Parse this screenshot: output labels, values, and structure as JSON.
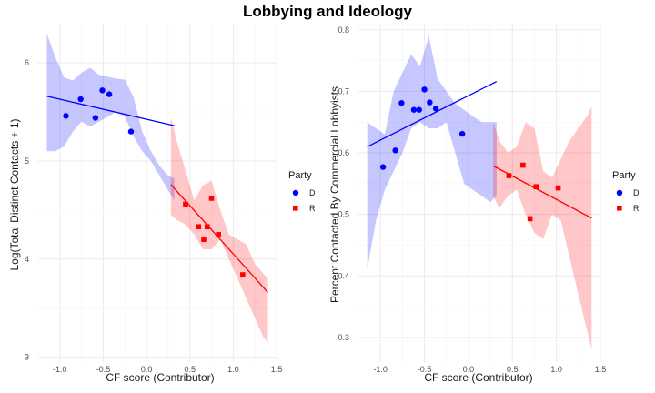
{
  "figure": {
    "title": "Lobbying and Ideology"
  },
  "legend_title": "Party",
  "party_colors": {
    "D": "#0000ff",
    "R": "#ff0000"
  },
  "chart_data": [
    {
      "type": "scatter",
      "xlabel": "CF score (Contributor)",
      "ylabel": "Log(Total Distinct Contacts + 1)",
      "xlim": [
        -1.25,
        1.5
      ],
      "ylim": [
        2.95,
        6.4
      ],
      "xticks": [
        -1.0,
        -0.5,
        0.0,
        0.5,
        1.0,
        1.5
      ],
      "xtick_labels": [
        "-1.0",
        "-0.5",
        "0.0",
        "0.5",
        "1.0",
        "1.5"
      ],
      "yticks": [
        3,
        4,
        5,
        6
      ],
      "ytick_labels": [
        "3",
        "4",
        "5",
        "6"
      ],
      "grid": true,
      "legend": {
        "title": "Party",
        "placement": "right",
        "entries": [
          "D",
          "R"
        ]
      },
      "series": [
        {
          "name": "D",
          "marker": "circle",
          "x": [
            -0.93,
            -0.76,
            -0.59,
            -0.51,
            -0.43,
            -0.18
          ],
          "y": [
            5.46,
            5.63,
            5.44,
            5.72,
            5.68,
            5.3
          ],
          "fit": {
            "x": [
              -1.15,
              0.32
            ],
            "y": [
              5.66,
              5.36
            ]
          },
          "band": {
            "x": [
              -1.15,
              -1.05,
              -0.95,
              -0.85,
              -0.75,
              -0.65,
              -0.55,
              -0.45,
              -0.35,
              -0.25,
              -0.15,
              -0.05,
              0.05,
              0.15,
              0.25,
              0.32
            ],
            "upper": [
              6.3,
              6.05,
              5.85,
              5.82,
              5.9,
              5.95,
              5.88,
              5.86,
              5.84,
              5.83,
              5.65,
              5.3,
              5.1,
              4.95,
              4.85,
              4.82
            ],
            "lower": [
              5.1,
              5.1,
              5.15,
              5.3,
              5.4,
              5.35,
              5.4,
              5.45,
              5.5,
              5.45,
              5.25,
              5.1,
              5.0,
              4.85,
              4.7,
              4.6
            ]
          }
        },
        {
          "name": "R",
          "marker": "square",
          "x": [
            0.45,
            0.6,
            0.66,
            0.7,
            0.75,
            0.83,
            1.11
          ],
          "y": [
            4.56,
            4.33,
            4.2,
            4.33,
            4.62,
            4.25,
            3.84
          ],
          "fit": {
            "x": [
              0.28,
              1.4
            ],
            "y": [
              4.76,
              3.66
            ]
          },
          "band": {
            "x": [
              0.28,
              0.35,
              0.45,
              0.55,
              0.65,
              0.75,
              0.85,
              0.95,
              1.05,
              1.15,
              1.25,
              1.35,
              1.4
            ],
            "upper": [
              5.45,
              5.2,
              4.9,
              4.6,
              4.75,
              4.8,
              4.5,
              4.25,
              4.2,
              4.15,
              3.95,
              3.85,
              3.8
            ],
            "lower": [
              4.45,
              4.4,
              4.35,
              4.25,
              4.1,
              4.1,
              4.2,
              4.0,
              3.8,
              3.6,
              3.4,
              3.2,
              3.15
            ]
          }
        }
      ]
    },
    {
      "type": "scatter",
      "xlabel": "CF score (Contributor)",
      "ylabel": "Percent Contacted By Commercial Lobbyists",
      "xlim": [
        -1.25,
        1.5
      ],
      "ylim": [
        0.26,
        0.81
      ],
      "xticks": [
        -1.0,
        -0.5,
        0.0,
        0.5,
        1.0,
        1.5
      ],
      "xtick_labels": [
        "-1.0",
        "-0.5",
        "0.0",
        "0.5",
        "1.0",
        "1.5"
      ],
      "yticks": [
        0.3,
        0.4,
        0.5,
        0.6,
        0.7,
        0.8
      ],
      "ytick_labels": [
        "0.3",
        "0.4",
        "0.5",
        "0.6",
        "0.7",
        "0.8"
      ],
      "grid": true,
      "legend": {
        "title": "Party",
        "placement": "right",
        "entries": [
          "D",
          "R"
        ]
      },
      "series": [
        {
          "name": "D",
          "marker": "circle",
          "x": [
            -0.97,
            -0.83,
            -0.76,
            -0.62,
            -0.56,
            -0.5,
            -0.44,
            -0.37,
            -0.07
          ],
          "y": [
            0.577,
            0.604,
            0.681,
            0.67,
            0.67,
            0.703,
            0.682,
            0.672,
            0.631
          ],
          "fit": {
            "x": [
              -1.15,
              0.32
            ],
            "y": [
              0.61,
              0.716
            ]
          },
          "band": {
            "x": [
              -1.15,
              -1.05,
              -0.95,
              -0.85,
              -0.75,
              -0.65,
              -0.55,
              -0.45,
              -0.35,
              -0.25,
              -0.15,
              -0.05,
              0.05,
              0.15,
              0.25,
              0.32
            ],
            "upper": [
              0.65,
              0.64,
              0.63,
              0.7,
              0.73,
              0.76,
              0.74,
              0.79,
              0.72,
              0.7,
              0.68,
              0.67,
              0.66,
              0.65,
              0.65,
              0.65
            ],
            "lower": [
              0.41,
              0.49,
              0.54,
              0.57,
              0.6,
              0.64,
              0.65,
              0.64,
              0.64,
              0.65,
              0.6,
              0.55,
              0.54,
              0.53,
              0.52,
              0.53
            ]
          }
        },
        {
          "name": "R",
          "marker": "square",
          "x": [
            0.46,
            0.62,
            0.7,
            0.77,
            1.02
          ],
          "y": [
            0.563,
            0.58,
            0.493,
            0.545,
            0.543
          ],
          "fit": {
            "x": [
              0.28,
              1.4
            ],
            "y": [
              0.579,
              0.494
            ]
          },
          "band": {
            "x": [
              0.28,
              0.35,
              0.45,
              0.55,
              0.65,
              0.75,
              0.85,
              0.95,
              1.05,
              1.15,
              1.25,
              1.35,
              1.4
            ],
            "upper": [
              0.65,
              0.62,
              0.6,
              0.61,
              0.65,
              0.64,
              0.57,
              0.56,
              0.59,
              0.62,
              0.64,
              0.66,
              0.675
            ],
            "lower": [
              0.53,
              0.51,
              0.53,
              0.54,
              0.5,
              0.47,
              0.46,
              0.5,
              0.49,
              0.43,
              0.37,
              0.31,
              0.28
            ]
          }
        }
      ]
    }
  ]
}
